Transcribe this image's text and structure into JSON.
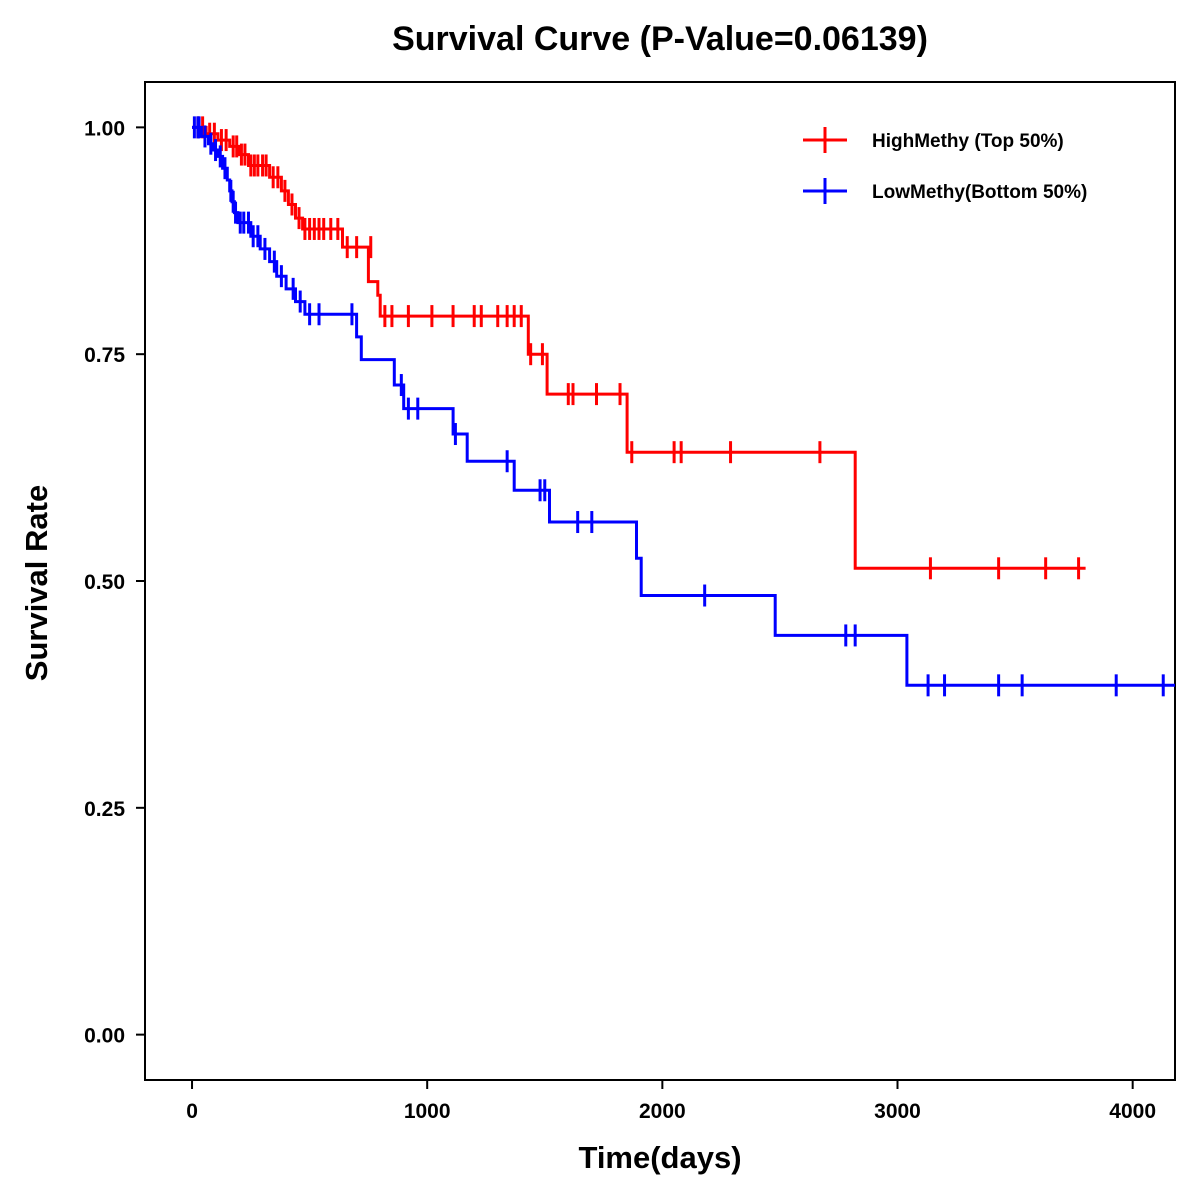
{
  "chart_data": {
    "type": "line",
    "subtype": "kaplan-meier-step",
    "title": "Survival Curve (P-Value=0.06139)",
    "xlabel": "Time(days)",
    "ylabel": "Survival Rate",
    "xlim": [
      -200,
      4180
    ],
    "ylim": [
      -0.05,
      1.05
    ],
    "x_ticks": [
      0,
      1000,
      2000,
      3000,
      4000
    ],
    "x_tick_labels": [
      "0",
      "1000",
      "2000",
      "3000",
      "4000"
    ],
    "y_ticks": [
      0,
      0.25,
      0.5,
      0.75,
      1.0
    ],
    "y_tick_labels": [
      "0.00",
      "0.25",
      "0.50",
      "0.75",
      "1.00"
    ],
    "grid": false,
    "legend_position": "top-right",
    "series": [
      {
        "name": "HighMethy (Top 50%)",
        "color": "#ff0000",
        "steps": [
          [
            0,
            1.0
          ],
          [
            60,
            0.993
          ],
          [
            110,
            0.986
          ],
          [
            160,
            0.979
          ],
          [
            200,
            0.97
          ],
          [
            240,
            0.958
          ],
          [
            330,
            0.945
          ],
          [
            380,
            0.93
          ],
          [
            410,
            0.915
          ],
          [
            440,
            0.9
          ],
          [
            470,
            0.888
          ],
          [
            640,
            0.868
          ],
          [
            750,
            0.83
          ],
          [
            790,
            0.815
          ],
          [
            800,
            0.792
          ],
          [
            1430,
            0.75
          ],
          [
            1510,
            0.706
          ],
          [
            1850,
            0.642
          ],
          [
            2820,
            0.514
          ],
          [
            3800,
            0.514
          ]
        ],
        "censored": [
          [
            25,
            1.0
          ],
          [
            45,
            1.0
          ],
          [
            75,
            0.993
          ],
          [
            95,
            0.993
          ],
          [
            125,
            0.986
          ],
          [
            145,
            0.986
          ],
          [
            175,
            0.979
          ],
          [
            190,
            0.979
          ],
          [
            210,
            0.97
          ],
          [
            225,
            0.97
          ],
          [
            250,
            0.958
          ],
          [
            265,
            0.958
          ],
          [
            280,
            0.958
          ],
          [
            300,
            0.958
          ],
          [
            315,
            0.958
          ],
          [
            345,
            0.945
          ],
          [
            365,
            0.945
          ],
          [
            395,
            0.93
          ],
          [
            425,
            0.915
          ],
          [
            455,
            0.9
          ],
          [
            480,
            0.888
          ],
          [
            500,
            0.888
          ],
          [
            520,
            0.888
          ],
          [
            540,
            0.888
          ],
          [
            560,
            0.888
          ],
          [
            590,
            0.888
          ],
          [
            620,
            0.888
          ],
          [
            660,
            0.868
          ],
          [
            700,
            0.868
          ],
          [
            760,
            0.868
          ],
          [
            820,
            0.792
          ],
          [
            850,
            0.792
          ],
          [
            920,
            0.792
          ],
          [
            1020,
            0.792
          ],
          [
            1110,
            0.792
          ],
          [
            1200,
            0.792
          ],
          [
            1230,
            0.792
          ],
          [
            1300,
            0.792
          ],
          [
            1340,
            0.792
          ],
          [
            1370,
            0.792
          ],
          [
            1400,
            0.792
          ],
          [
            1440,
            0.75
          ],
          [
            1490,
            0.75
          ],
          [
            1600,
            0.706
          ],
          [
            1620,
            0.706
          ],
          [
            1720,
            0.706
          ],
          [
            1820,
            0.706
          ],
          [
            1870,
            0.642
          ],
          [
            2050,
            0.642
          ],
          [
            2080,
            0.642
          ],
          [
            2290,
            0.642
          ],
          [
            2670,
            0.642
          ],
          [
            3140,
            0.514
          ],
          [
            3430,
            0.514
          ],
          [
            3630,
            0.514
          ],
          [
            3770,
            0.514
          ]
        ]
      },
      {
        "name": "LowMethy(Bottom 50%)",
        "color": "#0000ff",
        "steps": [
          [
            0,
            1.0
          ],
          [
            40,
            0.99
          ],
          [
            70,
            0.982
          ],
          [
            90,
            0.975
          ],
          [
            110,
            0.968
          ],
          [
            130,
            0.955
          ],
          [
            150,
            0.942
          ],
          [
            160,
            0.93
          ],
          [
            170,
            0.918
          ],
          [
            180,
            0.906
          ],
          [
            195,
            0.895
          ],
          [
            250,
            0.88
          ],
          [
            290,
            0.866
          ],
          [
            330,
            0.852
          ],
          [
            360,
            0.836
          ],
          [
            400,
            0.822
          ],
          [
            440,
            0.808
          ],
          [
            480,
            0.794
          ],
          [
            700,
            0.769
          ],
          [
            720,
            0.744
          ],
          [
            860,
            0.716
          ],
          [
            900,
            0.69
          ],
          [
            1110,
            0.662
          ],
          [
            1170,
            0.632
          ],
          [
            1370,
            0.6
          ],
          [
            1520,
            0.565
          ],
          [
            1890,
            0.525
          ],
          [
            1910,
            0.484
          ],
          [
            2480,
            0.44
          ],
          [
            3040,
            0.385
          ],
          [
            4180,
            0.385
          ]
        ],
        "censored": [
          [
            10,
            1.0
          ],
          [
            25,
            1.0
          ],
          [
            30,
            1.0
          ],
          [
            55,
            0.99
          ],
          [
            80,
            0.982
          ],
          [
            100,
            0.975
          ],
          [
            120,
            0.968
          ],
          [
            140,
            0.955
          ],
          [
            165,
            0.93
          ],
          [
            175,
            0.918
          ],
          [
            185,
            0.906
          ],
          [
            205,
            0.895
          ],
          [
            220,
            0.895
          ],
          [
            240,
            0.895
          ],
          [
            260,
            0.88
          ],
          [
            280,
            0.88
          ],
          [
            310,
            0.866
          ],
          [
            350,
            0.852
          ],
          [
            380,
            0.836
          ],
          [
            430,
            0.822
          ],
          [
            460,
            0.808
          ],
          [
            500,
            0.794
          ],
          [
            540,
            0.794
          ],
          [
            680,
            0.794
          ],
          [
            890,
            0.716
          ],
          [
            920,
            0.69
          ],
          [
            960,
            0.69
          ],
          [
            1120,
            0.662
          ],
          [
            1340,
            0.632
          ],
          [
            1480,
            0.6
          ],
          [
            1500,
            0.6
          ],
          [
            1640,
            0.565
          ],
          [
            1700,
            0.565
          ],
          [
            2180,
            0.484
          ],
          [
            2780,
            0.44
          ],
          [
            2820,
            0.44
          ],
          [
            3130,
            0.385
          ],
          [
            3200,
            0.385
          ],
          [
            3430,
            0.385
          ],
          [
            3530,
            0.385
          ],
          [
            3930,
            0.385
          ],
          [
            4130,
            0.385
          ]
        ]
      }
    ]
  }
}
